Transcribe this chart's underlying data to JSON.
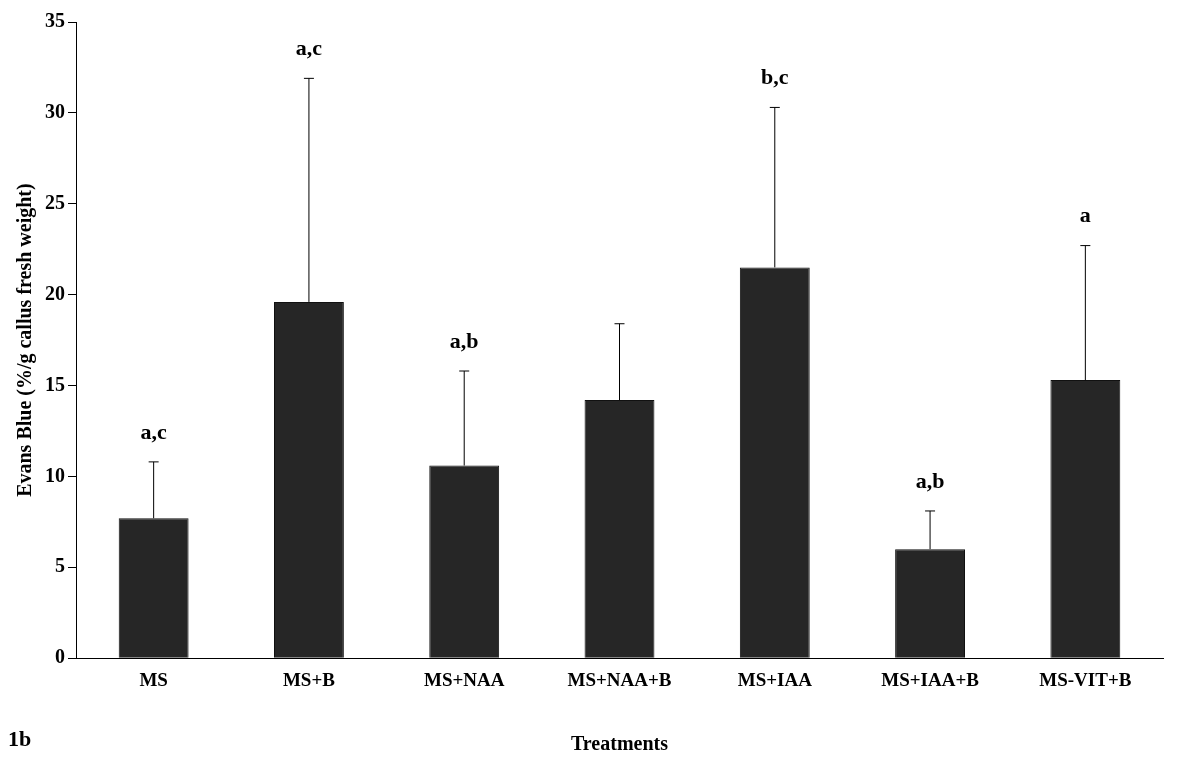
{
  "chart_data": {
    "type": "bar",
    "xlabel": "Treatments",
    "ylabel": "Evans Blue (%/g callus fresh weight)",
    "categories": [
      "MS",
      "MS+B",
      "MS+NAA",
      "MS+NAA+B",
      "MS+IAA",
      "MS+IAA+B",
      "MS-VIT+B"
    ],
    "values": [
      7.7,
      19.6,
      10.6,
      14.2,
      21.5,
      6.0,
      15.3
    ],
    "errors": [
      [
        7.7,
        10.8
      ],
      [
        19.6,
        31.9
      ],
      [
        10.6,
        15.8
      ],
      [
        14.2,
        18.4
      ],
      [
        21.5,
        30.3
      ],
      [
        6.0,
        8.1
      ],
      [
        15.3,
        22.7
      ]
    ],
    "color": "#262626",
    "ylim": [
      0,
      35
    ],
    "yticks": [
      0,
      5,
      10,
      15,
      20,
      25,
      30,
      35
    ],
    "grid": false,
    "legend": false,
    "annotations": [
      {
        "text": "a,c",
        "x": "MS",
        "y": 10.8
      },
      {
        "text": "a,c",
        "x": "MS+B",
        "y": 31.9
      },
      {
        "text": "a,b",
        "x": "MS+NAA",
        "y": 15.8
      },
      {
        "text": "b,c",
        "x": "MS+IAA",
        "y": 30.3
      },
      {
        "text": "a,b",
        "x": "MS+IAA+B",
        "y": 8.1
      },
      {
        "text": "a",
        "x": "MS-VIT+B",
        "y": 22.7
      },
      "1b"
    ]
  }
}
